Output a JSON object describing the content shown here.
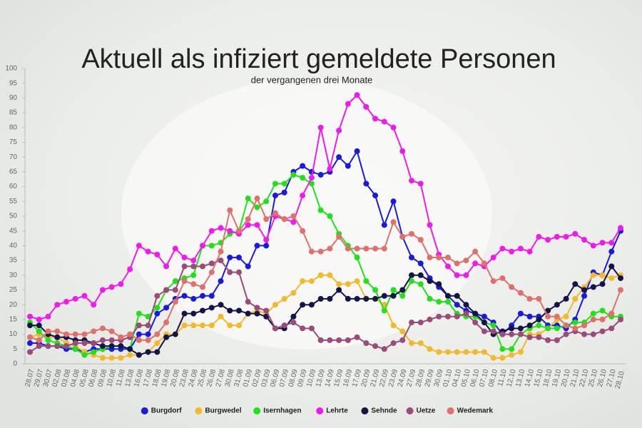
{
  "chart_data": {
    "type": "line",
    "title": "Aktuell als infiziert gemeldete Personen",
    "subtitle": "der vergangenen drei Monate",
    "categories": [
      "28.07",
      "29.07",
      "30.07",
      "02.08",
      "03.08",
      "04.08",
      "05.08",
      "06.08",
      "09.08",
      "10.08",
      "11.08",
      "13.08",
      "16.08",
      "17.08",
      "18.08",
      "19.08",
      "20.08",
      "23.08",
      "24.08",
      "25.08",
      "26.08",
      "27.08",
      "30.08",
      "31.08",
      "01.09",
      "02.09",
      "03.09",
      "06.09",
      "07.09",
      "08.09",
      "09.09",
      "10.09",
      "13.09",
      "14.09",
      "15.09",
      "16.09",
      "17.09",
      "20.09",
      "21.09",
      "22.09",
      "23.09",
      "24.09",
      "27.09",
      "28.09",
      "29.09",
      "30.09",
      "01.10",
      "04.10",
      "05.10",
      "06.10",
      "07.10",
      "08.10",
      "11.10",
      "12.10",
      "13.10",
      "14.10",
      "15.10",
      "18.10",
      "19.10",
      "20.10",
      "21.10",
      "22.10",
      "25.10",
      "26.10",
      "27.10",
      "28.10."
    ],
    "series": [
      {
        "name": "Burgdorf",
        "color": "#1a1adf",
        "values": [
          7,
          7,
          6,
          6,
          5,
          5,
          4,
          5,
          5,
          5,
          5,
          5,
          10,
          10,
          17,
          19,
          22,
          23,
          22,
          23,
          23,
          28,
          36,
          36,
          33,
          40,
          40,
          57,
          58,
          65,
          67,
          65,
          64,
          65,
          70,
          67,
          72,
          61,
          57,
          47,
          55,
          43,
          36,
          34,
          29,
          26,
          23,
          20,
          18,
          17,
          16,
          14,
          10,
          13,
          17,
          16,
          16,
          13,
          13,
          12,
          15,
          23,
          31,
          30,
          38,
          45
        ]
      },
      {
        "name": "Burgwedel",
        "color": "#f2b92a",
        "values": [
          9,
          10,
          9,
          9,
          7,
          6,
          4,
          3,
          2,
          2,
          2,
          3,
          3,
          4,
          7,
          10,
          10,
          13,
          13,
          13,
          13,
          16,
          13,
          13,
          17,
          18,
          17,
          20,
          22,
          24,
          28,
          28,
          30,
          30,
          27,
          27,
          28,
          22,
          22,
          20,
          13,
          11,
          7,
          7,
          5,
          4,
          4,
          4,
          4,
          4,
          4,
          2,
          2,
          3,
          4,
          10,
          10,
          12,
          15,
          16,
          22,
          26,
          30,
          30,
          29,
          30
        ]
      },
      {
        "name": "Isernhagen",
        "color": "#22e01a",
        "values": [
          14,
          11,
          8,
          7,
          6,
          5,
          3,
          4,
          5,
          6,
          6,
          5,
          17,
          16,
          19,
          25,
          28,
          29,
          30,
          40,
          40,
          41,
          44,
          45,
          56,
          53,
          55,
          61,
          61,
          64,
          63,
          61,
          52,
          50,
          44,
          40,
          36,
          28,
          25,
          18,
          25,
          23,
          28,
          27,
          22,
          21,
          21,
          17,
          16,
          16,
          14,
          13,
          5,
          5,
          10,
          12,
          13,
          12,
          12,
          13,
          14,
          14,
          17,
          18,
          16,
          16
        ]
      },
      {
        "name": "Lehrte",
        "color": "#ee1aee",
        "values": [
          16,
          15,
          16,
          20,
          21,
          22,
          23,
          20,
          25,
          26,
          27,
          32,
          40,
          38,
          37,
          33,
          39,
          36,
          35,
          40,
          45,
          46,
          45,
          44,
          47,
          47,
          42,
          50,
          49,
          48,
          57,
          63,
          80,
          66,
          79,
          88,
          91,
          87,
          83,
          82,
          80,
          72,
          62,
          61,
          47,
          37,
          33,
          30,
          30,
          34,
          33,
          36,
          39,
          38,
          39,
          38,
          43,
          42,
          43,
          43,
          44,
          42,
          40,
          41,
          41,
          46
        ]
      },
      {
        "name": "Sehnde",
        "color": "#14144a",
        "values": [
          13,
          13,
          10,
          9,
          9,
          8,
          8,
          7,
          6,
          6,
          6,
          5,
          3,
          4,
          4,
          9,
          10,
          17,
          17,
          18,
          19,
          20,
          18,
          18,
          17,
          17,
          16,
          12,
          12,
          16,
          20,
          20,
          22,
          22,
          25,
          22,
          22,
          22,
          22,
          23,
          23,
          25,
          30,
          30,
          28,
          27,
          23,
          23,
          20,
          17,
          14,
          10,
          11,
          12,
          12,
          13,
          15,
          18,
          20,
          22,
          27,
          25,
          26,
          27,
          33,
          29
        ]
      },
      {
        "name": "Uetze",
        "color": "#9c4a7a",
        "values": [
          4,
          6,
          6,
          6,
          6,
          7,
          7,
          7,
          8,
          8,
          8,
          9,
          13,
          13,
          23,
          25,
          25,
          33,
          33,
          33,
          34,
          35,
          31,
          31,
          21,
          19,
          18,
          12,
          13,
          14,
          12,
          12,
          8,
          8,
          8,
          8,
          9,
          7,
          6,
          5,
          7,
          8,
          14,
          14,
          15,
          16,
          16,
          16,
          17,
          14,
          11,
          11,
          10,
          10,
          10,
          9,
          9,
          8,
          8,
          10,
          11,
          10,
          10,
          11,
          12,
          15
        ]
      },
      {
        "name": "Wedemark",
        "color": "#e0706a",
        "values": [
          9,
          8,
          11,
          11,
          10,
          10,
          10,
          11,
          12,
          11,
          9,
          10,
          8,
          8,
          10,
          14,
          21,
          28,
          27,
          26,
          31,
          38,
          52,
          45,
          49,
          56,
          49,
          51,
          49,
          50,
          45,
          38,
          38,
          39,
          43,
          39,
          39,
          39,
          39,
          39,
          48,
          43,
          44,
          42,
          36,
          36,
          36,
          34,
          35,
          38,
          34,
          28,
          29,
          26,
          24,
          22,
          22,
          16,
          16,
          13,
          12,
          13,
          15,
          15,
          17,
          25
        ]
      }
    ],
    "ylim": [
      0,
      100
    ],
    "yticks": [
      0,
      5,
      10,
      15,
      20,
      25,
      30,
      35,
      40,
      45,
      50,
      55,
      60,
      65,
      70,
      75,
      80,
      85,
      90,
      95,
      100
    ],
    "grid": false
  }
}
